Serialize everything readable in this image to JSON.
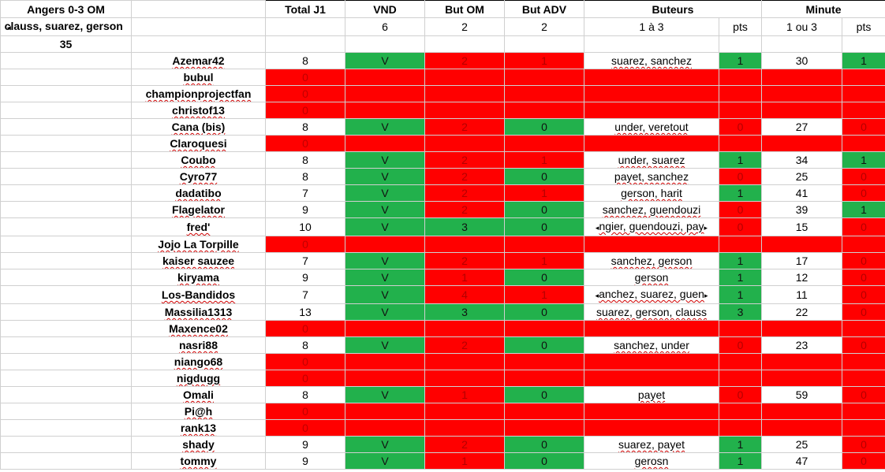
{
  "sheet": {
    "match_title": "Angers 0-3 OM",
    "scorers": "clauss, suarez, gerson",
    "minute": "35",
    "headers": {
      "total": "Total J1",
      "vnd": "VND",
      "but_om": "But OM",
      "but_adv": "But ADV",
      "buteurs": "Buteurs",
      "minute": "Minute"
    },
    "subheaders": {
      "vnd": "6",
      "but_om": "2",
      "but_adv": "2",
      "buteurs": "1 à 3",
      "buteurs_pts": "pts",
      "minute": "1 ou 3",
      "minute_pts": "pts"
    },
    "rows": [
      {
        "name": "Azemar42",
        "total": "8",
        "vnd": "V",
        "om": "2",
        "adv": "1",
        "buteurs": "suarez, sanchez",
        "bpts": "1",
        "min": "30",
        "mpts": "1",
        "c": [
          "green",
          "red",
          "red",
          "white",
          "green",
          "white",
          "green"
        ]
      },
      {
        "name": "bubul",
        "total": "0",
        "vnd": "",
        "om": "",
        "adv": "",
        "buteurs": "",
        "bpts": "",
        "min": "",
        "mpts": "",
        "c": [
          "red",
          "red",
          "red",
          "red",
          "red",
          "red",
          "red"
        ]
      },
      {
        "name": "championprojectfan",
        "total": "0",
        "vnd": "",
        "om": "",
        "adv": "",
        "buteurs": "",
        "bpts": "",
        "min": "",
        "mpts": "",
        "c": [
          "red",
          "red",
          "red",
          "red",
          "red",
          "red",
          "red"
        ]
      },
      {
        "name": "christof13",
        "total": "0",
        "vnd": "",
        "om": "",
        "adv": "",
        "buteurs": "",
        "bpts": "",
        "min": "",
        "mpts": "",
        "c": [
          "red",
          "red",
          "red",
          "red",
          "red",
          "red",
          "red"
        ]
      },
      {
        "name": "Cana (bis)",
        "total": "8",
        "vnd": "V",
        "om": "2",
        "adv": "0",
        "buteurs": "under, veretout",
        "bpts": "0",
        "min": "27",
        "mpts": "0",
        "c": [
          "green",
          "red",
          "green",
          "white",
          "red",
          "white",
          "red"
        ]
      },
      {
        "name": "Claroquesi",
        "total": "0",
        "vnd": "",
        "om": "",
        "adv": "",
        "buteurs": "",
        "bpts": "",
        "min": "",
        "mpts": "",
        "c": [
          "red",
          "red",
          "red",
          "red",
          "red",
          "red",
          "red"
        ]
      },
      {
        "name": "Coubo",
        "total": "8",
        "vnd": "V",
        "om": "2",
        "adv": "1",
        "buteurs": "under, suarez",
        "bpts": "1",
        "min": "34",
        "mpts": "1",
        "c": [
          "green",
          "red",
          "red",
          "white",
          "green",
          "white",
          "green"
        ]
      },
      {
        "name": "Cyro77",
        "total": "8",
        "vnd": "V",
        "om": "2",
        "adv": "0",
        "buteurs": "payet, sanchez",
        "bpts": "0",
        "min": "25",
        "mpts": "0",
        "c": [
          "green",
          "red",
          "green",
          "white",
          "red",
          "white",
          "red"
        ]
      },
      {
        "name": "dadatibo",
        "total": "7",
        "vnd": "V",
        "om": "2",
        "adv": "1",
        "buteurs": "gerson, harit",
        "bpts": "1",
        "min": "41",
        "mpts": "0",
        "c": [
          "green",
          "red",
          "red",
          "white",
          "green",
          "white",
          "red"
        ]
      },
      {
        "name": "Flagelator",
        "total": "9",
        "vnd": "V",
        "om": "2",
        "adv": "0",
        "buteurs": "sanchez, guendouzi",
        "bpts": "0",
        "min": "39",
        "mpts": "1",
        "c": [
          "green",
          "red",
          "green",
          "white",
          "red",
          "white",
          "green"
        ]
      },
      {
        "name": "fred'",
        "total": "10",
        "vnd": "V",
        "om": "3",
        "adv": "0",
        "buteurs": "ngier, guendouzi, pay",
        "bpts": "0",
        "min": "15",
        "mpts": "0",
        "c": [
          "green",
          "green",
          "green",
          "white",
          "red",
          "white",
          "red"
        ],
        "clip": true
      },
      {
        "name": "Jojo La Torpille",
        "total": "0",
        "vnd": "",
        "om": "",
        "adv": "",
        "buteurs": "",
        "bpts": "",
        "min": "",
        "mpts": "",
        "c": [
          "red",
          "red",
          "red",
          "red",
          "red",
          "red",
          "red"
        ]
      },
      {
        "name": "kaiser sauzee",
        "total": "7",
        "vnd": "V",
        "om": "2",
        "adv": "1",
        "buteurs": "sanchez, gerson",
        "bpts": "1",
        "min": "17",
        "mpts": "0",
        "c": [
          "green",
          "red",
          "red",
          "white",
          "green",
          "white",
          "red"
        ]
      },
      {
        "name": "kiryama",
        "total": "9",
        "vnd": "V",
        "om": "1",
        "adv": "0",
        "buteurs": "gerson",
        "bpts": "1",
        "min": "12",
        "mpts": "0",
        "c": [
          "green",
          "red",
          "green",
          "white",
          "green",
          "white",
          "red"
        ]
      },
      {
        "name": "Los-Bandidos",
        "total": "7",
        "vnd": "V",
        "om": "4",
        "adv": "1",
        "buteurs": "anchez, suarez, guen",
        "bpts": "1",
        "min": "11",
        "mpts": "0",
        "c": [
          "green",
          "red",
          "red",
          "white",
          "green",
          "white",
          "red"
        ],
        "clip": true
      },
      {
        "name": "Massilia1313",
        "total": "13",
        "vnd": "V",
        "om": "3",
        "adv": "0",
        "buteurs": "suarez, gerson, clauss",
        "bpts": "3",
        "min": "22",
        "mpts": "0",
        "c": [
          "green",
          "green",
          "green",
          "white",
          "green",
          "white",
          "red"
        ]
      },
      {
        "name": "Maxence02",
        "total": "0",
        "vnd": "",
        "om": "",
        "adv": "",
        "buteurs": "",
        "bpts": "",
        "min": "",
        "mpts": "",
        "c": [
          "red",
          "red",
          "red",
          "red",
          "red",
          "red",
          "red"
        ]
      },
      {
        "name": "nasri88",
        "total": "8",
        "vnd": "V",
        "om": "2",
        "adv": "0",
        "buteurs": "sanchez, under",
        "bpts": "0",
        "min": "23",
        "mpts": "0",
        "c": [
          "green",
          "red",
          "green",
          "white",
          "red",
          "white",
          "red"
        ]
      },
      {
        "name": "niango68",
        "total": "0",
        "vnd": "",
        "om": "",
        "adv": "",
        "buteurs": "",
        "bpts": "",
        "min": "",
        "mpts": "",
        "c": [
          "red",
          "red",
          "red",
          "red",
          "red",
          "red",
          "red"
        ]
      },
      {
        "name": "nigdugg",
        "total": "0",
        "vnd": "",
        "om": "",
        "adv": "",
        "buteurs": "",
        "bpts": "",
        "min": "",
        "mpts": "",
        "c": [
          "red",
          "red",
          "red",
          "red",
          "red",
          "red",
          "red"
        ]
      },
      {
        "name": "Omali",
        "total": "8",
        "vnd": "V",
        "om": "1",
        "adv": "0",
        "buteurs": "payet",
        "bpts": "0",
        "min": "59",
        "mpts": "0",
        "c": [
          "green",
          "red",
          "green",
          "white",
          "red",
          "white",
          "red"
        ]
      },
      {
        "name": "Pi@h",
        "total": "0",
        "vnd": "",
        "om": "",
        "adv": "",
        "buteurs": "",
        "bpts": "",
        "min": "",
        "mpts": "",
        "c": [
          "red",
          "red",
          "red",
          "red",
          "red",
          "red",
          "red"
        ]
      },
      {
        "name": "rank13",
        "total": "0",
        "vnd": "",
        "om": "",
        "adv": "",
        "buteurs": "",
        "bpts": "",
        "min": "",
        "mpts": "",
        "c": [
          "red",
          "red",
          "red",
          "red",
          "red",
          "red",
          "red"
        ]
      },
      {
        "name": "shady",
        "total": "9",
        "vnd": "V",
        "om": "2",
        "adv": "0",
        "buteurs": "suarez, payet",
        "bpts": "1",
        "min": "25",
        "mpts": "0",
        "c": [
          "green",
          "red",
          "green",
          "white",
          "green",
          "white",
          "red"
        ]
      },
      {
        "name": "tommy",
        "total": "9",
        "vnd": "V",
        "om": "1",
        "adv": "0",
        "buteurs": "gerosn",
        "bpts": "1",
        "min": "47",
        "mpts": "0",
        "c": [
          "green",
          "red",
          "green",
          "white",
          "green",
          "white",
          "red"
        ]
      }
    ]
  },
  "colors": {
    "green": "#22b14c",
    "red": "#ff0000",
    "grid": "#d0d0d0"
  }
}
